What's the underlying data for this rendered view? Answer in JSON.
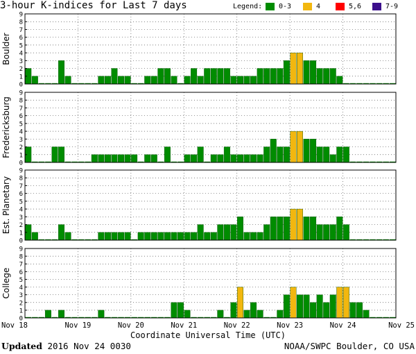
{
  "header": {
    "title": "3-hour K-indices for Last 7 days",
    "legend_label": "Legend:",
    "legend": [
      {
        "label": "0-3",
        "color": "#008c00"
      },
      {
        "label": "4",
        "color": "#f2b70f"
      },
      {
        "label": "5,6",
        "color": "#ff0000"
      },
      {
        "label": "7-9",
        "color": "#3c0f8c"
      }
    ]
  },
  "footer": {
    "updated_label": "Updated",
    "updated_value": "2016 Nov 24 0030",
    "credit": "NOAA/SWPC Boulder, CO USA"
  },
  "chart_data": {
    "type": "bar",
    "xlabel": "Coordinate Universal Time (UTC)",
    "x_ticks": [
      "Nov 18",
      "Nov 19",
      "Nov 20",
      "Nov 21",
      "Nov 22",
      "Nov 23",
      "Nov 24",
      "Nov 25"
    ],
    "ylim": [
      0,
      9
    ],
    "y_ticks": [
      0,
      1,
      2,
      3,
      4,
      5,
      6,
      7,
      8,
      9
    ],
    "grid": true,
    "interval_hours": 3,
    "series": [
      {
        "name": "Boulder",
        "values": [
          2,
          1,
          0,
          0,
          0,
          3,
          1,
          0,
          0,
          0,
          0,
          1,
          1,
          2,
          1,
          1,
          0,
          0,
          1,
          1,
          2,
          2,
          1,
          0,
          1,
          2,
          1,
          2,
          2,
          2,
          2,
          1,
          1,
          1,
          1,
          2,
          2,
          2,
          2,
          3,
          4,
          4,
          3,
          3,
          2,
          2,
          2,
          1,
          0,
          0,
          0,
          0,
          0,
          0,
          0,
          0
        ]
      },
      {
        "name": "Fredericksburg",
        "values": [
          2,
          0,
          0,
          0,
          2,
          2,
          0,
          0,
          0,
          0,
          1,
          1,
          1,
          1,
          1,
          1,
          1,
          0,
          1,
          1,
          0,
          2,
          0,
          0,
          1,
          1,
          2,
          0,
          1,
          1,
          2,
          1,
          1,
          1,
          1,
          1,
          2,
          3,
          2,
          2,
          4,
          4,
          3,
          3,
          2,
          2,
          1,
          2,
          2,
          0,
          0,
          0,
          0,
          0,
          0,
          0
        ]
      },
      {
        "name": "Est. Planetary",
        "values": [
          2,
          1,
          0,
          0,
          0,
          2,
          1,
          0,
          0,
          0,
          0,
          1,
          1,
          1,
          1,
          1,
          0,
          1,
          1,
          1,
          1,
          1,
          1,
          1,
          1,
          1,
          2,
          1,
          1,
          2,
          2,
          2,
          3,
          1,
          1,
          1,
          2,
          3,
          3,
          3,
          4,
          4,
          3,
          3,
          2,
          2,
          2,
          3,
          2,
          0,
          0,
          0,
          0,
          0,
          0,
          0
        ]
      },
      {
        "name": "College",
        "values": [
          0,
          0,
          0,
          1,
          0,
          1,
          0,
          0,
          0,
          0,
          0,
          1,
          0,
          0,
          0,
          0,
          0,
          0,
          0,
          0,
          0,
          0,
          2,
          2,
          1,
          0,
          0,
          0,
          0,
          1,
          0,
          2,
          4,
          1,
          2,
          1,
          0,
          0,
          1,
          3,
          4,
          3,
          3,
          2,
          3,
          2,
          3,
          4,
          4,
          2,
          2,
          1,
          0,
          0,
          0,
          0
        ]
      }
    ]
  }
}
